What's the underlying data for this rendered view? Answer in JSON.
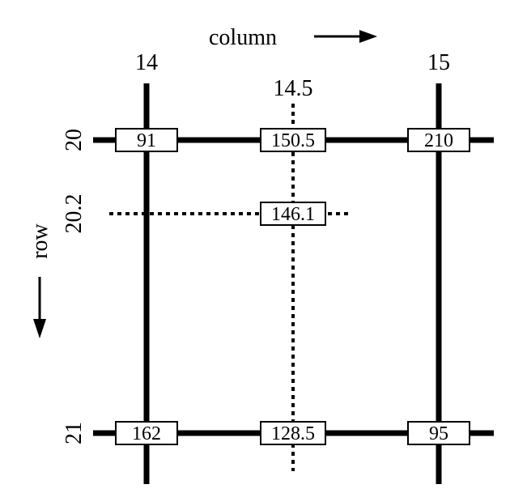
{
  "labels": {
    "column_axis": "column",
    "row_axis": "row",
    "col_left": "14",
    "col_right": "15",
    "col_mid": "14.5",
    "row_top": "20",
    "row_bottom": "21",
    "row_mid": "20.2"
  },
  "values": {
    "top_left": "91",
    "top_mid": "150.5",
    "top_right": "210",
    "center": "146.1",
    "bottom_left": "162",
    "bottom_mid": "128.5",
    "bottom_right": "95"
  }
}
